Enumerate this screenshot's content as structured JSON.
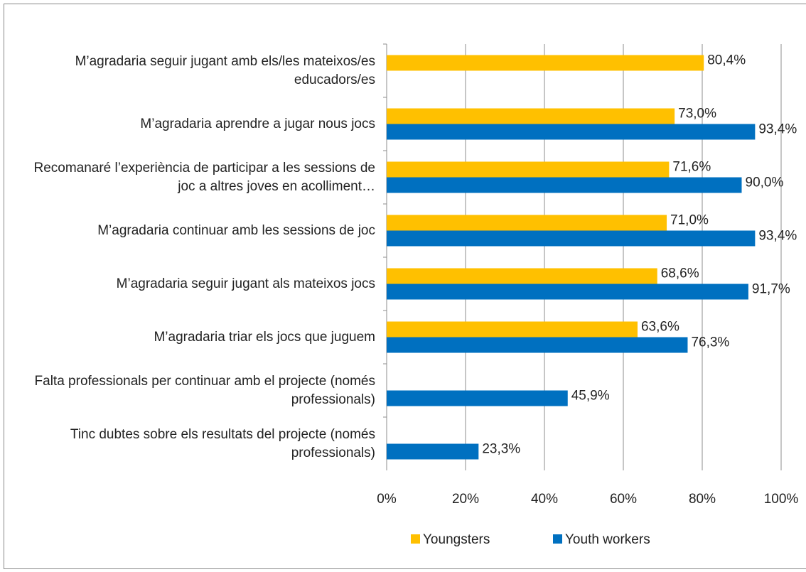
{
  "chart_data": {
    "type": "hbar",
    "categories": [
      "M’agradaria seguir jugant amb els/les mateixos/es educadors/es",
      "M’agradaria aprendre a jugar nous jocs",
      "Recomanaré l’experiència de participar a les sessions de joc a altres joves en acolliment…",
      "M’agradaria continuar amb les sessions de joc",
      "M’agradaria seguir jugant als mateixos jocs",
      "M’agradaria triar els jocs que juguem",
      "Falta professionals per continuar amb el projecte (només professionals)",
      "Tinc dubtes sobre els resultats del projecte (només professionals)"
    ],
    "series": [
      {
        "name": "Youngsters",
        "color": "#ffc000",
        "values": [
          80.4,
          73.0,
          71.6,
          71.0,
          68.6,
          63.6,
          null,
          null
        ],
        "value_labels": [
          "80,4%",
          "73,0%",
          "71,6%",
          "71,0%",
          "68,6%",
          "63,6%",
          null,
          null
        ]
      },
      {
        "name": "Youth workers",
        "color": "#0070c0",
        "values": [
          null,
          93.4,
          90.0,
          93.4,
          91.7,
          76.3,
          45.9,
          23.3
        ],
        "value_labels": [
          null,
          "93,4%",
          "90,0%",
          "93,4%",
          "91,7%",
          "76,3%",
          "45,9%",
          "23,3%"
        ]
      }
    ],
    "xlim": [
      0,
      100
    ],
    "xticks": [
      {
        "value": 0,
        "label": "0%"
      },
      {
        "value": 20,
        "label": "20%"
      },
      {
        "value": 40,
        "label": "40%"
      },
      {
        "value": 60,
        "label": "60%"
      },
      {
        "value": 80,
        "label": "80%"
      },
      {
        "value": 100,
        "label": "100%"
      }
    ],
    "grid": true,
    "legend": "bottom"
  }
}
